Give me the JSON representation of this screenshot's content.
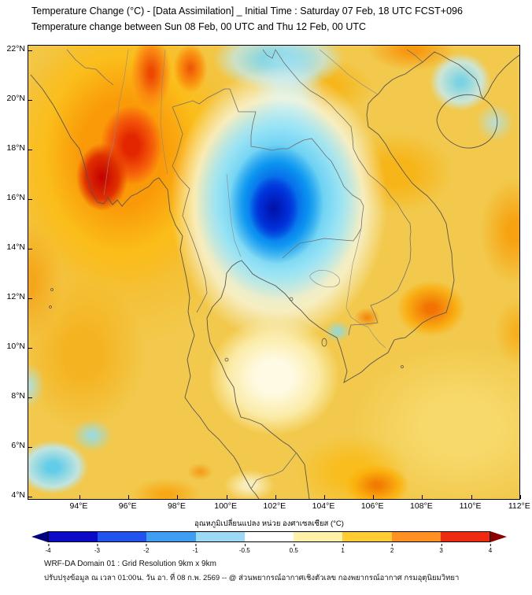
{
  "header": {
    "line1": "Temperature Change (°C) - [Data Assimilation] _ Initial Time : Saturday 07 Feb, 18 UTC FCST+096",
    "line2": "Temperature change between Sun 08 Feb, 00 UTC and Thu 12 Feb, 00 UTC"
  },
  "map": {
    "lat_labels": [
      "22°N",
      "20°N",
      "18°N",
      "16°N",
      "14°N",
      "12°N",
      "10°N",
      "8°N",
      "6°N",
      "4°N"
    ],
    "lon_labels": [
      "94°E",
      "96°E",
      "98°E",
      "100°E",
      "102°E",
      "104°E",
      "106°E",
      "108°E",
      "110°E",
      "112°E"
    ]
  },
  "colorbar": {
    "label": "อุณหภูมิเปลี่ยนแปลง หน่วย องศาเซลเซียส (°C)",
    "tick_labels": [
      "-4",
      "-3",
      "-2",
      "-1",
      "-0.5",
      "0.5",
      "1",
      "2",
      "3",
      "4"
    ],
    "segment_colors": [
      "#0a0ac8",
      "#2353ee",
      "#3f9ef2",
      "#9bd9f5",
      "#ffffff",
      "#fff2a8",
      "#ffcc33",
      "#ff9122",
      "#ee2b11"
    ],
    "under_arrow_color": "#000080",
    "over_arrow_color": "#8b0000"
  },
  "footer": {
    "line1": "WRF-DA Domain 01 : Grid Resolution 9km x 9km",
    "line2": "ปรับปรุงข้อมูล ณ เวลา 01:00น. วัน อา. ที่ 08 ก.พ. 2569 -- @ ส่วนพยากรณ์อากาศเชิงตัวเลข กองพยากรณ์อากาศ กรมอุตุนิยมวิทยา"
  }
}
